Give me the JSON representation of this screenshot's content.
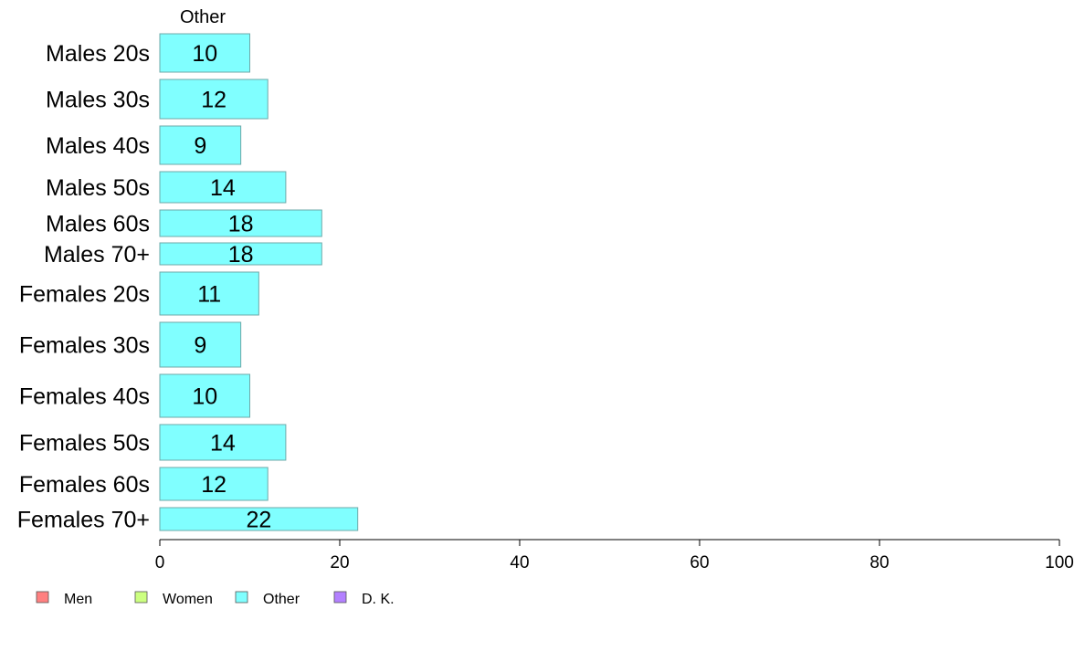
{
  "chart_data": {
    "type": "bar",
    "orientation": "horizontal",
    "title": "",
    "panel_title": "Other",
    "xlabel": "",
    "ylabel": "",
    "xlim": [
      0,
      100
    ],
    "x_ticks": [
      0,
      20,
      40,
      60,
      80,
      100
    ],
    "grid": false,
    "categories": [
      "Males 20s",
      "Males 30s",
      "Males 40s",
      "Males 50s",
      "Males 60s",
      "Males 70+",
      "Females 20s",
      "Females 30s",
      "Females 40s",
      "Females 50s",
      "Females 60s",
      "Females 70+"
    ],
    "series": [
      {
        "name": "Other",
        "color": "#80ffff",
        "values": [
          10,
          12,
          9,
          14,
          18,
          18,
          11,
          9,
          10,
          14,
          12,
          22
        ]
      }
    ],
    "legend": {
      "placement": "bottom-left",
      "entries": [
        {
          "label": "Men",
          "color": "#ff8080"
        },
        {
          "label": "Women",
          "color": "#ccff80"
        },
        {
          "label": "Other",
          "color": "#80ffff"
        },
        {
          "label": "D. K.",
          "color": "#b380ff"
        }
      ]
    }
  }
}
